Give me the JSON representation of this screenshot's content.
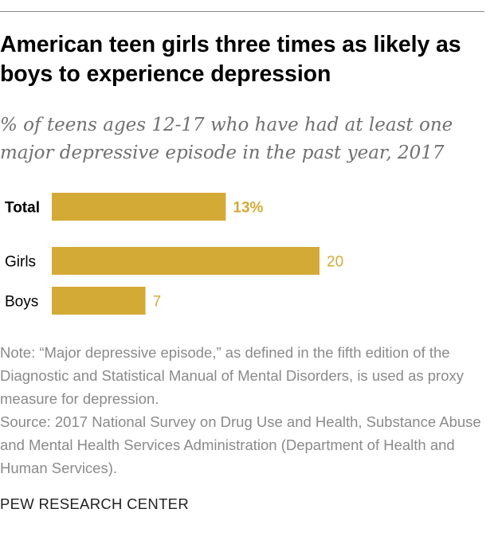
{
  "title": "American teen girls three times as likely as boys to experience depression",
  "subtitle": "% of teens ages 12-17 who have had at least one major depressive episode in the past year, 2017",
  "chart_data": {
    "type": "bar",
    "orientation": "horizontal",
    "categories": [
      "Total",
      "Girls",
      "Boys"
    ],
    "values": [
      13,
      20,
      7
    ],
    "value_labels": [
      "13%",
      "20",
      "7"
    ],
    "bar_color": "#d4aa37",
    "grid": false,
    "legend": "none"
  },
  "note": "Note: “Major depressive episode,” as defined in the fifth edition of the Diagnostic and Statistical Manual of Mental Disorders, is used as proxy measure for depression.",
  "source": "Source: 2017 National Survey on Drug Use and Health, Substance Abuse and Mental Health Services Administration (Department of Health and Human Services).",
  "footer": "PEW RESEARCH CENTER"
}
